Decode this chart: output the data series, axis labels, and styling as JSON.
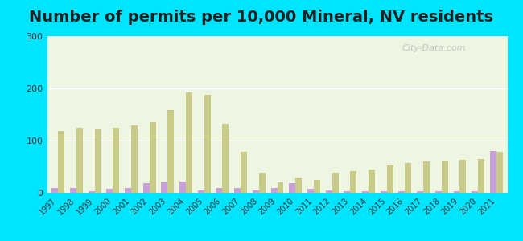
{
  "title": "Number of permits per 10,000 Mineral, NV residents",
  "years": [
    1997,
    1998,
    1999,
    2000,
    2001,
    2002,
    2003,
    2004,
    2005,
    2006,
    2007,
    2008,
    2009,
    2010,
    2011,
    2012,
    2013,
    2014,
    2015,
    2016,
    2017,
    2018,
    2019,
    2020,
    2021
  ],
  "mineral_county": [
    10,
    10,
    3,
    8,
    10,
    18,
    20,
    22,
    5,
    10,
    10,
    5,
    10,
    18,
    8,
    5,
    3,
    3,
    3,
    3,
    3,
    3,
    3,
    3,
    80
  ],
  "nevada_avg": [
    118,
    125,
    123,
    125,
    130,
    135,
    158,
    192,
    188,
    132,
    78,
    38,
    20,
    30,
    25,
    38,
    42,
    45,
    52,
    57,
    60,
    62,
    63,
    65,
    78
  ],
  "mineral_color": "#c8a0d8",
  "nevada_color": "#c8cc88",
  "plot_bg": "#eef5e0",
  "outer_bg": "#00e5ff",
  "ylim": [
    0,
    300
  ],
  "yticks": [
    0,
    100,
    200,
    300
  ],
  "bar_width": 0.35,
  "title_fontsize": 14
}
